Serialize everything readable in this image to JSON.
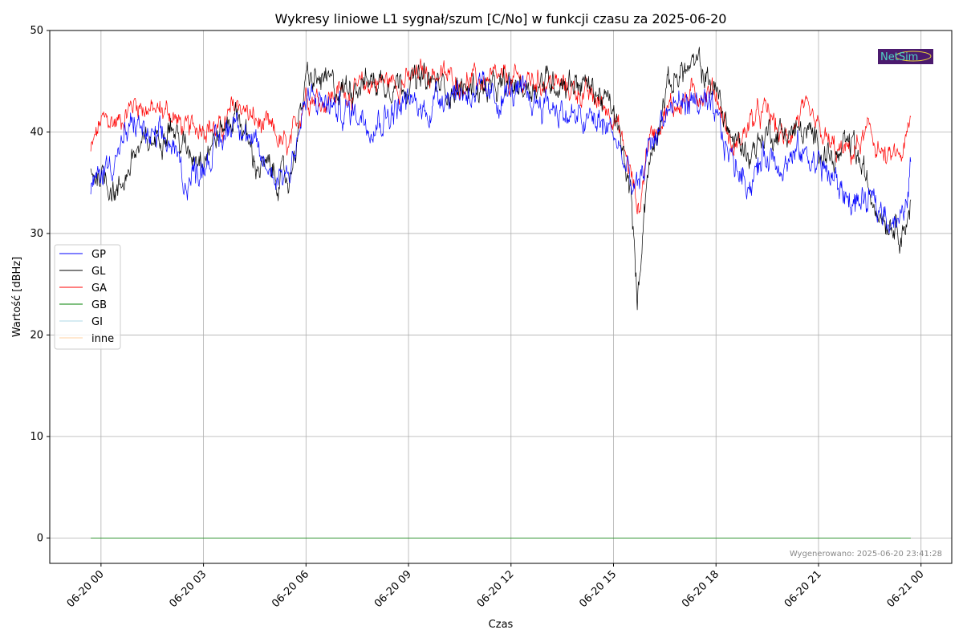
{
  "chart_data": {
    "type": "line",
    "title": "Wykresy liniowe L1 sygnał/szum [C/No] w funkcji czasu za 2025-06-20",
    "xlabel": "Czas",
    "ylabel": "Wartość [dBHz]",
    "ylim": [
      -2.5,
      50
    ],
    "xlim_hours": [
      -1.5,
      24.9
    ],
    "yticks": [
      0,
      10,
      20,
      30,
      40,
      50
    ],
    "xticks": [
      {
        "h": 0,
        "label": "06-20 00"
      },
      {
        "h": 3,
        "label": "06-20 03"
      },
      {
        "h": 6,
        "label": "06-20 06"
      },
      {
        "h": 9,
        "label": "06-20 09"
      },
      {
        "h": 12,
        "label": "06-20 12"
      },
      {
        "h": 15,
        "label": "06-20 15"
      },
      {
        "h": 18,
        "label": "06-20 18"
      },
      {
        "h": 21,
        "label": "06-20 21"
      },
      {
        "h": 24,
        "label": "06-21 00"
      }
    ],
    "grid": true,
    "legend_position": "center-left",
    "x_unit": "hours since 2025-06-20 00:00",
    "series": [
      {
        "name": "GP",
        "color": "#0000ff",
        "noise": 1.6,
        "x": [
          -0.3,
          0,
          0.5,
          1,
          1.5,
          2,
          2.5,
          3,
          3.5,
          4,
          4.5,
          5,
          5.5,
          6,
          6.5,
          7,
          7.5,
          8,
          8.5,
          9,
          9.5,
          10,
          10.5,
          11,
          11.5,
          12,
          12.5,
          13,
          13.5,
          14,
          14.5,
          15,
          15.5,
          15.75,
          16,
          16.5,
          17,
          17.5,
          18,
          18.5,
          19,
          19.5,
          20,
          20.5,
          21,
          21.5,
          22,
          22.5,
          23,
          23.5,
          23.7
        ],
        "y": [
          34,
          36,
          38,
          41,
          39,
          39,
          35,
          37,
          39,
          42,
          38,
          36,
          36,
          43,
          43,
          42,
          42,
          41,
          42,
          43,
          42,
          44,
          44,
          44,
          43,
          44,
          43,
          43,
          42,
          41,
          41,
          40,
          35,
          34,
          38,
          42,
          43,
          43,
          41,
          37,
          35,
          38,
          37,
          38,
          37,
          35,
          33,
          33,
          32,
          31,
          37
        ]
      },
      {
        "name": "GL",
        "color": "#000000",
        "noise": 1.5,
        "x": [
          -0.3,
          0,
          0.5,
          1,
          1.5,
          2,
          2.5,
          3,
          3.5,
          4,
          4.5,
          5,
          5.5,
          6,
          6.5,
          7,
          7.5,
          8,
          8.5,
          9,
          9.5,
          10,
          10.5,
          11,
          11.5,
          12,
          12.5,
          13,
          13.5,
          14,
          14.5,
          15,
          15.5,
          15.7,
          15.9,
          16,
          16.5,
          17,
          17.5,
          18,
          18.5,
          19,
          19.5,
          20,
          20.5,
          21,
          21.5,
          22,
          22.5,
          23,
          23.5,
          23.7
        ],
        "y": [
          36,
          36,
          34,
          38,
          39,
          41,
          38,
          38,
          40,
          42,
          37,
          36,
          35,
          45,
          45,
          44,
          45,
          45,
          45,
          45,
          45,
          44.5,
          44,
          44.5,
          44,
          44.5,
          44.5,
          45,
          45,
          45,
          44,
          42,
          34,
          23,
          33,
          36,
          44,
          46,
          46.5,
          44,
          39,
          38,
          40,
          40,
          40,
          39,
          37,
          39,
          34,
          31.5,
          30.5,
          33
        ]
      },
      {
        "name": "GA",
        "color": "#ff0000",
        "noise": 1.3,
        "x": [
          -0.3,
          0,
          0.5,
          1,
          1.5,
          2,
          2.5,
          3,
          3.5,
          4,
          4.5,
          5,
          5.5,
          6,
          6.5,
          7,
          7.5,
          8,
          8.5,
          9,
          9.5,
          10,
          10.5,
          11,
          11.5,
          12,
          12.5,
          13,
          13.5,
          14,
          14.5,
          15,
          15.5,
          15.75,
          16,
          16.5,
          17,
          17.5,
          18,
          18.5,
          19,
          19.5,
          20,
          20.5,
          21,
          21.5,
          22,
          22.5,
          23,
          23.5,
          23.7
        ],
        "y": [
          38,
          41,
          41,
          43,
          42,
          42,
          40,
          41,
          40,
          43,
          41,
          40,
          38,
          44,
          43,
          44,
          44,
          45,
          45,
          45,
          46,
          45.5,
          45,
          45,
          45,
          45,
          45,
          45,
          44.5,
          44,
          43,
          42,
          36,
          32,
          39,
          42,
          43,
          44,
          44,
          38,
          41,
          42,
          39,
          42,
          40,
          38,
          38,
          40,
          37,
          38,
          41
        ]
      },
      {
        "name": "GB",
        "color": "#008000",
        "noise": 0,
        "x": [
          -0.3,
          23.7
        ],
        "y": [
          0,
          0
        ]
      },
      {
        "name": "GI",
        "color": "#add8e6",
        "noise": 0,
        "x": [
          -0.3,
          23.7
        ],
        "y": [
          0,
          0
        ]
      },
      {
        "name": "inne",
        "color": "#ffd2a0",
        "noise": 0,
        "x": [
          -0.3,
          23.7
        ],
        "y": [
          0,
          0
        ]
      }
    ],
    "annotation": "Wygenerowano: 2025-06-20 23:41:28",
    "logo_text": "NetSim"
  }
}
